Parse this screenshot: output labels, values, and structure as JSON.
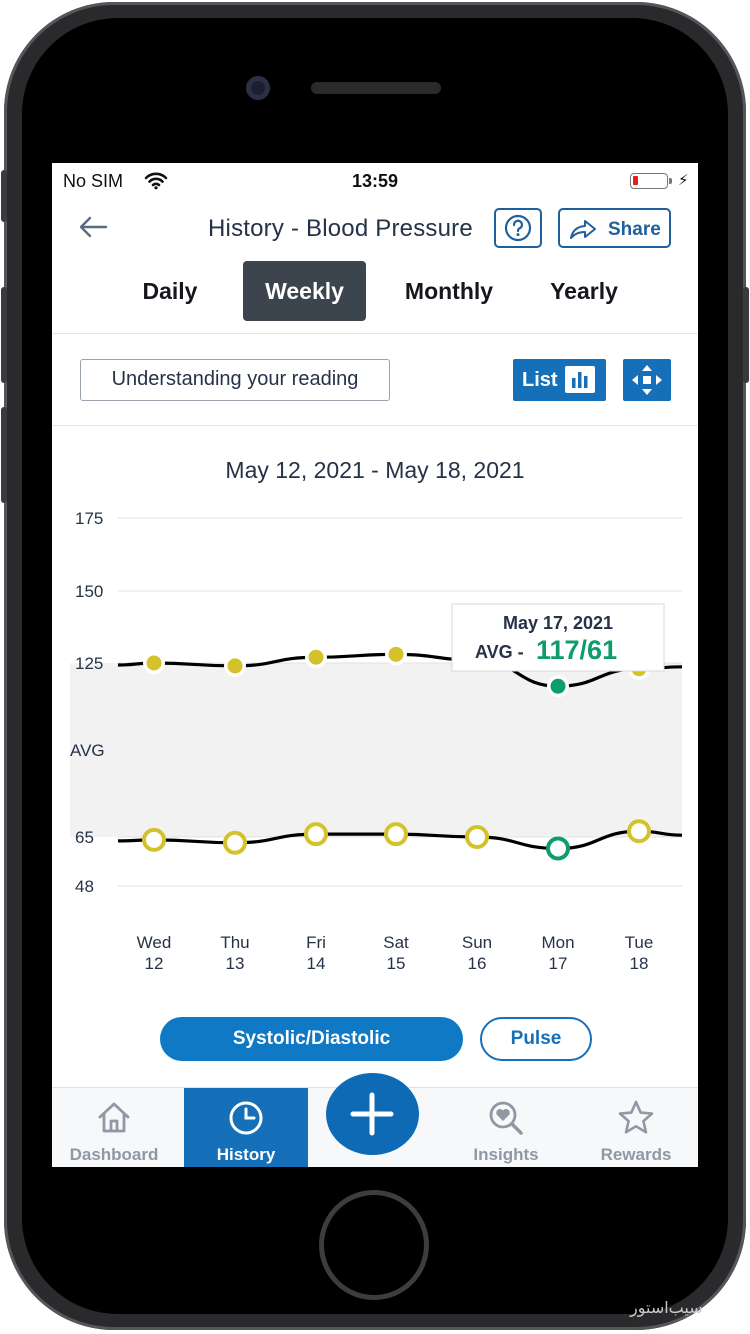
{
  "status_bar": {
    "carrier": "No SIM",
    "time": "13:59"
  },
  "header": {
    "title": "History - Blood Pressure",
    "help_icon": "question-circle-icon",
    "share_label": "Share"
  },
  "period_tabs": [
    {
      "label": "Daily",
      "active": false
    },
    {
      "label": "Weekly",
      "active": true
    },
    {
      "label": "Monthly",
      "active": false
    },
    {
      "label": "Yearly",
      "active": false
    }
  ],
  "toolbar": {
    "understanding_label": "Understanding your reading",
    "list_label": "List",
    "list_icon": "bar-chart-icon",
    "expand_icon": "expand-arrows-icon"
  },
  "chart_data": {
    "type": "line",
    "date_range": "May 12, 2021 - May 18, 2021",
    "y_ticks": [
      "175",
      "150",
      "125",
      "AVG",
      "65",
      "48"
    ],
    "categories": [
      {
        "day": "Wed",
        "date": "12"
      },
      {
        "day": "Thu",
        "date": "13"
      },
      {
        "day": "Fri",
        "date": "14"
      },
      {
        "day": "Sat",
        "date": "15"
      },
      {
        "day": "Sun",
        "date": "16"
      },
      {
        "day": "Mon",
        "date": "17"
      },
      {
        "day": "Tue",
        "date": "18"
      }
    ],
    "series": [
      {
        "values": [
          125,
          124,
          127,
          128,
          126,
          117,
          123
        ]
      },
      {
        "values": [
          64,
          63,
          66,
          66,
          65,
          61,
          67
        ]
      }
    ],
    "band": [
      65,
      125
    ],
    "highlight_index": 5,
    "tooltip": {
      "date": "May 17, 2021",
      "label": "AVG -",
      "value": "117/61"
    },
    "colors": {
      "normal": "#d4c22a",
      "highlight": "#0e9b6e",
      "line": "#000000",
      "band": "#f2f2f2"
    }
  },
  "chart_toggle": {
    "systolic_label": "Systolic/Diastolic",
    "pulse_label": "Pulse"
  },
  "bottom_nav": [
    {
      "label": "Dashboard",
      "icon": "home-icon",
      "active": false
    },
    {
      "label": "History",
      "icon": "clock-icon",
      "active": true
    },
    {
      "label": "Insights",
      "icon": "heart-search-icon",
      "active": false
    },
    {
      "label": "Rewards",
      "icon": "star-icon",
      "active": false
    }
  ],
  "fab_icon": "plus-icon",
  "watermark": "سیب‌استور"
}
